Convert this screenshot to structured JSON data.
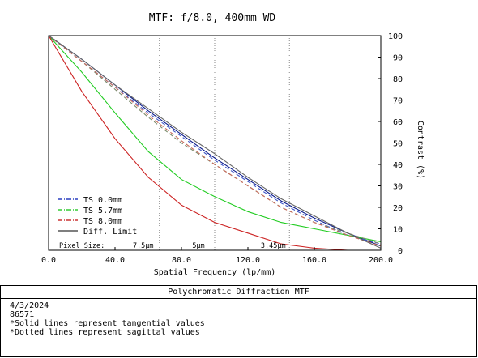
{
  "chart_data": {
    "type": "line",
    "title": "MTF: f/8.0, 400mm WD",
    "xlabel": "Spatial Frequency (lp/mm)",
    "ylabel": "Contrast (%)",
    "xlim": [
      0,
      200
    ],
    "ylim": [
      0,
      100
    ],
    "x_ticks": [
      "0.0",
      "40.0",
      "80.0",
      "120.0",
      "160.0",
      "200.0"
    ],
    "y_ticks": [
      "0",
      "10",
      "20",
      "30",
      "40",
      "50",
      "60",
      "70",
      "80",
      "90",
      "100"
    ],
    "y_axis_side": "right",
    "legend_position": "bottom-left",
    "pixel_size_label": "Pixel Size:",
    "pixel_markers": [
      {
        "label": "7.5µm",
        "x": 66.7
      },
      {
        "label": "5µm",
        "x": 100
      },
      {
        "label": "3.45µm",
        "x": 145
      }
    ],
    "series": [
      {
        "name": "TS 0.0mm",
        "color": "#0a1a8c",
        "style": "solid",
        "x": [
          0,
          20,
          40,
          60,
          80,
          100,
          120,
          140,
          160,
          180,
          200
        ],
        "y": [
          100,
          89,
          77,
          65,
          54,
          43,
          33,
          23,
          15,
          8,
          2
        ]
      },
      {
        "name": "TS 0.0mm",
        "color": "#3f57c8",
        "style": "dashed",
        "x": [
          0,
          20,
          40,
          60,
          80,
          100,
          120,
          140,
          160,
          180,
          200
        ],
        "y": [
          100,
          88,
          76,
          64,
          53,
          42,
          32,
          22,
          14,
          7,
          3
        ]
      },
      {
        "name": "TS 5.7mm",
        "color": "#22cc22",
        "style": "solid",
        "x": [
          0,
          20,
          40,
          60,
          80,
          100,
          120,
          140,
          160,
          180,
          200
        ],
        "y": [
          100,
          83,
          64,
          46,
          33,
          25,
          18,
          13,
          10,
          7,
          4
        ]
      },
      {
        "name": "TS 5.7mm",
        "color": "#7a8a6a",
        "style": "dashed",
        "x": [
          0,
          20,
          40,
          60,
          80,
          100,
          120,
          140,
          160,
          180,
          200
        ],
        "y": [
          100,
          88,
          75,
          62,
          50,
          40,
          30,
          20,
          13,
          8,
          3
        ]
      },
      {
        "name": "TS 8.0mm",
        "color": "#cc2222",
        "style": "solid",
        "x": [
          0,
          20,
          40,
          60,
          80,
          100,
          120,
          140,
          160,
          180,
          200
        ],
        "y": [
          100,
          74,
          52,
          34,
          21,
          13,
          8,
          3,
          1,
          0,
          0
        ]
      },
      {
        "name": "TS 8.0mm",
        "color": "#c86a5a",
        "style": "dashed",
        "x": [
          0,
          20,
          40,
          60,
          80,
          100,
          120,
          140,
          160,
          180,
          200
        ],
        "y": [
          100,
          88,
          76,
          63,
          51,
          40,
          30,
          20,
          13,
          7,
          2
        ]
      },
      {
        "name": "Diff. Limit",
        "color": "#666666",
        "style": "solid",
        "x": [
          0,
          20,
          40,
          60,
          80,
          100,
          120,
          140,
          160,
          180,
          200
        ],
        "y": [
          100,
          89,
          77,
          66,
          55,
          45,
          34,
          24,
          16,
          8,
          1
        ]
      }
    ],
    "legend": [
      {
        "label": "TS 0.0mm",
        "color": "#2a3ec0",
        "style": "dashdot"
      },
      {
        "label": "TS 5.7mm",
        "color": "#33cc33",
        "style": "dashdot"
      },
      {
        "label": "TS 8.0mm",
        "color": "#cc3333",
        "style": "dashdot"
      },
      {
        "label": "Diff. Limit",
        "color": "#555555",
        "style": "solid"
      }
    ]
  },
  "info": {
    "header": "Polychromatic Diffraction MTF",
    "lines": [
      "4/3/2024",
      "86571",
      "*Solid lines represent tangential values",
      "*Dotted lines represent sagittal values"
    ]
  }
}
